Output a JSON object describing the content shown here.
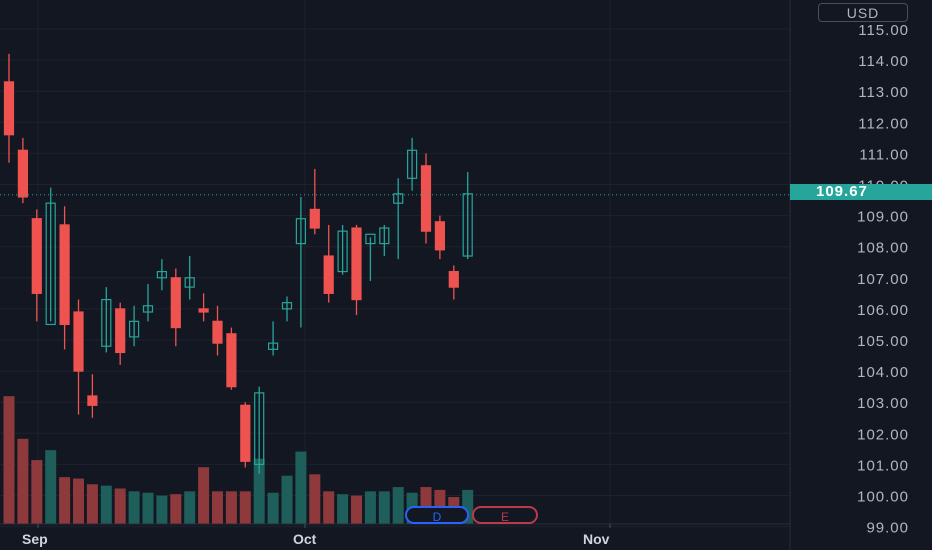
{
  "currency": "USD",
  "last_price": "109.67",
  "colors": {
    "background": "#131722",
    "up": "#26a69a",
    "down": "#ef5350",
    "up_volume": "#1f5f5b",
    "down_volume": "#8e3a3c",
    "axis_text": "#b2b5be",
    "grid": "#1e222d",
    "event_d": "#2962ff",
    "event_e": "#b93a4a"
  },
  "event_markers": {
    "dividend": "D",
    "earnings": "E"
  },
  "chart_data": {
    "type": "candlestick",
    "y_axis_ticks": [
      "115.00",
      "114.00",
      "113.00",
      "112.00",
      "111.00",
      "110.00",
      "109.00",
      "108.00",
      "107.00",
      "106.00",
      "105.00",
      "104.00",
      "103.00",
      "102.00",
      "101.00",
      "100.00",
      "99.00"
    ],
    "ylim": [
      99,
      115.6
    ],
    "x_axis_labels": [
      "Sep",
      "Oct",
      "Nov"
    ],
    "current_price": 109.67,
    "grid": true,
    "candles": [
      {
        "o": 113.3,
        "h": 114.2,
        "l": 110.7,
        "c": 111.6,
        "v": 9
      },
      {
        "o": 111.1,
        "h": 111.5,
        "l": 109.4,
        "c": 109.6,
        "v": 6
      },
      {
        "o": 108.9,
        "h": 109.2,
        "l": 105.6,
        "c": 106.5,
        "v": 4.5
      },
      {
        "o": 105.5,
        "h": 109.9,
        "l": 105.6,
        "c": 109.4,
        "v": 5.2
      },
      {
        "o": 108.7,
        "h": 109.3,
        "l": 104.7,
        "c": 105.5,
        "v": 3.3
      },
      {
        "o": 105.9,
        "h": 106.3,
        "l": 102.6,
        "c": 104.0,
        "v": 3.2
      },
      {
        "o": 103.2,
        "h": 103.9,
        "l": 102.5,
        "c": 102.9,
        "v": 2.8
      },
      {
        "o": 104.8,
        "h": 106.7,
        "l": 104.6,
        "c": 106.3,
        "v": 2.7
      },
      {
        "o": 106.0,
        "h": 106.2,
        "l": 104.2,
        "c": 104.6,
        "v": 2.5
      },
      {
        "o": 105.1,
        "h": 106.1,
        "l": 104.8,
        "c": 105.6,
        "v": 2.3
      },
      {
        "o": 105.9,
        "h": 106.8,
        "l": 105.6,
        "c": 106.1,
        "v": 2.2
      },
      {
        "o": 107.0,
        "h": 107.6,
        "l": 106.6,
        "c": 107.2,
        "v": 2.0
      },
      {
        "o": 107.0,
        "h": 107.3,
        "l": 104.8,
        "c": 105.4,
        "v": 2.1
      },
      {
        "o": 106.7,
        "h": 107.7,
        "l": 106.3,
        "c": 107.0,
        "v": 2.3
      },
      {
        "o": 106.0,
        "h": 106.5,
        "l": 105.6,
        "c": 105.9,
        "v": 4.0
      },
      {
        "o": 105.6,
        "h": 106.1,
        "l": 104.5,
        "c": 104.9,
        "v": 2.3
      },
      {
        "o": 105.2,
        "h": 105.4,
        "l": 103.4,
        "c": 103.5,
        "v": 2.3
      },
      {
        "o": 102.9,
        "h": 103.0,
        "l": 100.9,
        "c": 101.1,
        "v": 2.3
      },
      {
        "o": 101.0,
        "h": 103.5,
        "l": 100.7,
        "c": 103.3,
        "v": 4.6
      },
      {
        "o": 104.7,
        "h": 105.6,
        "l": 104.5,
        "c": 104.9,
        "v": 2.2
      },
      {
        "o": 106.0,
        "h": 106.4,
        "l": 105.6,
        "c": 106.2,
        "v": 3.4
      },
      {
        "o": 108.1,
        "h": 109.6,
        "l": 105.4,
        "c": 108.9,
        "v": 5.1
      },
      {
        "o": 109.2,
        "h": 110.5,
        "l": 108.4,
        "c": 108.6,
        "v": 3.5
      },
      {
        "o": 107.7,
        "h": 108.7,
        "l": 106.2,
        "c": 106.5,
        "v": 2.3
      },
      {
        "o": 107.2,
        "h": 108.7,
        "l": 107.1,
        "c": 108.5,
        "v": 2.1
      },
      {
        "o": 108.6,
        "h": 108.7,
        "l": 105.8,
        "c": 106.3,
        "v": 2.0
      },
      {
        "o": 108.1,
        "h": 108.3,
        "l": 106.9,
        "c": 108.4,
        "v": 2.3
      },
      {
        "o": 108.1,
        "h": 108.7,
        "l": 107.7,
        "c": 108.6,
        "v": 2.3
      },
      {
        "o": 109.4,
        "h": 110.2,
        "l": 107.6,
        "c": 109.7,
        "v": 2.6
      },
      {
        "o": 110.2,
        "h": 111.5,
        "l": 109.8,
        "c": 111.1,
        "v": 2.2
      },
      {
        "o": 110.6,
        "h": 111.0,
        "l": 108.1,
        "c": 108.5,
        "v": 2.6
      },
      {
        "o": 108.8,
        "h": 109.0,
        "l": 107.6,
        "c": 107.9,
        "v": 2.4
      },
      {
        "o": 107.2,
        "h": 107.4,
        "l": 106.3,
        "c": 106.7,
        "v": 1.9
      },
      {
        "o": 107.7,
        "h": 110.4,
        "l": 107.6,
        "c": 109.7,
        "v": 2.4
      }
    ]
  }
}
